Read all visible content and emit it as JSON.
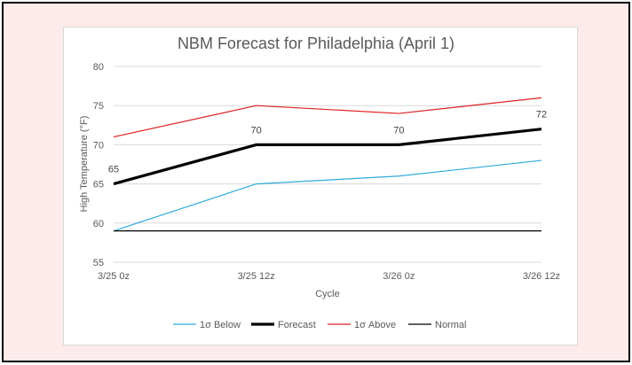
{
  "chart_data": {
    "type": "line",
    "title": "NBM Forecast for Philadelphia (April 1)",
    "xlabel": "Cycle",
    "ylabel": "High Temperature (°F)",
    "categories": [
      "3/25 0z",
      "3/25 12z",
      "3/26 0z",
      "3/26 12z"
    ],
    "ylim": [
      55,
      80
    ],
    "yticks": [
      55,
      60,
      65,
      70,
      75,
      80
    ],
    "grid": true,
    "legend": "bottom",
    "series": [
      {
        "name": "1σ Below",
        "values": [
          59,
          65,
          66,
          68
        ],
        "color": "#2eaadc"
      },
      {
        "name": "Forecast",
        "values": [
          65,
          70,
          70,
          72
        ],
        "color": "#000000",
        "data_labels": [
          "65",
          "70",
          "70",
          "72"
        ]
      },
      {
        "name": "1σ Above",
        "values": [
          71,
          75,
          74,
          76
        ],
        "color": "#e02020"
      },
      {
        "name": "Normal",
        "values": [
          59,
          59,
          59,
          59
        ],
        "color": "#000000"
      }
    ]
  }
}
